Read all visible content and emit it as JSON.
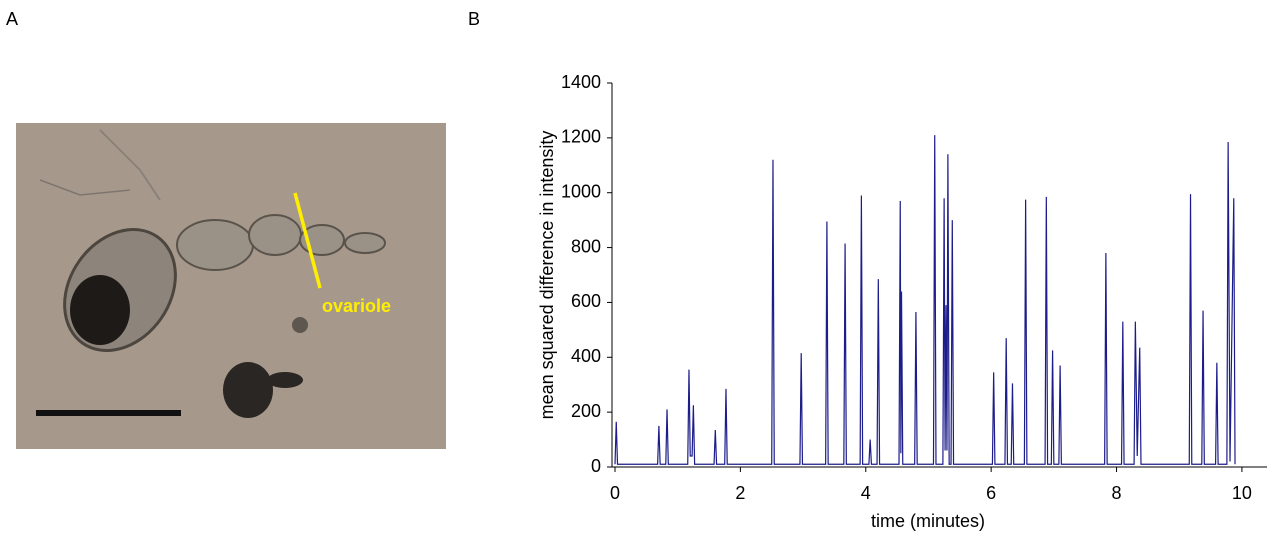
{
  "panel_a": {
    "label": "A",
    "annotation": "ovariole"
  },
  "panel_b": {
    "label": "B"
  },
  "chart_data": {
    "type": "line",
    "x_label": "time (minutes)",
    "y_label": "mean squared difference in intensity",
    "color": "#1c1c8a",
    "x": [
      0,
      0.02,
      0.04,
      0.68,
      0.7,
      0.72,
      0.81,
      0.83,
      0.85,
      1.16,
      1.18,
      1.2,
      1.23,
      1.25,
      1.27,
      1.58,
      1.6,
      1.62,
      1.75,
      1.77,
      1.79,
      2.5,
      2.52,
      2.54,
      2.95,
      2.97,
      2.99,
      3.36,
      3.38,
      3.4,
      3.65,
      3.67,
      3.69,
      3.91,
      3.93,
      3.95,
      4.05,
      4.07,
      4.09,
      4.18,
      4.2,
      4.22,
      4.53,
      4.55,
      4.56,
      4.57,
      4.59,
      4.78,
      4.8,
      4.82,
      5.08,
      5.1,
      5.12,
      5.23,
      5.25,
      5.265,
      5.28,
      5.295,
      5.31,
      5.33,
      5.36,
      5.38,
      5.4,
      6.02,
      6.04,
      6.06,
      6.22,
      6.24,
      6.26,
      6.32,
      6.34,
      6.36,
      6.53,
      6.55,
      6.57,
      6.86,
      6.88,
      6.9,
      6.96,
      6.98,
      7.0,
      7.08,
      7.1,
      7.12,
      7.81,
      7.83,
      7.85,
      8.08,
      8.1,
      8.12,
      8.28,
      8.3,
      8.33,
      8.37,
      8.39,
      9.16,
      9.18,
      9.2,
      9.36,
      9.38,
      9.4,
      9.58,
      9.6,
      9.62,
      9.76,
      9.78,
      9.81,
      9.87,
      9.89
    ],
    "values": [
      10,
      165,
      10,
      10,
      150,
      10,
      10,
      210,
      10,
      10,
      355,
      40,
      40,
      225,
      10,
      10,
      135,
      10,
      10,
      285,
      10,
      10,
      1120,
      10,
      10,
      415,
      10,
      10,
      895,
      10,
      10,
      815,
      10,
      10,
      990,
      10,
      10,
      100,
      10,
      10,
      685,
      10,
      10,
      970,
      50,
      640,
      10,
      10,
      565,
      10,
      10,
      1210,
      10,
      10,
      980,
      60,
      590,
      60,
      1140,
      10,
      10,
      900,
      10,
      10,
      345,
      10,
      10,
      470,
      10,
      10,
      305,
      10,
      10,
      975,
      10,
      10,
      985,
      10,
      10,
      425,
      10,
      10,
      370,
      10,
      10,
      780,
      10,
      10,
      530,
      10,
      10,
      530,
      40,
      435,
      10,
      10,
      995,
      10,
      10,
      570,
      10,
      10,
      380,
      10,
      10,
      1185,
      20,
      980,
      10
    ],
    "xlim": [
      0,
      10.4
    ],
    "ylim": [
      0,
      1400
    ],
    "xticks": [
      0,
      2,
      4,
      6,
      8,
      10
    ],
    "yticks": [
      0,
      200,
      400,
      600,
      800,
      1000,
      1200,
      1400
    ]
  }
}
